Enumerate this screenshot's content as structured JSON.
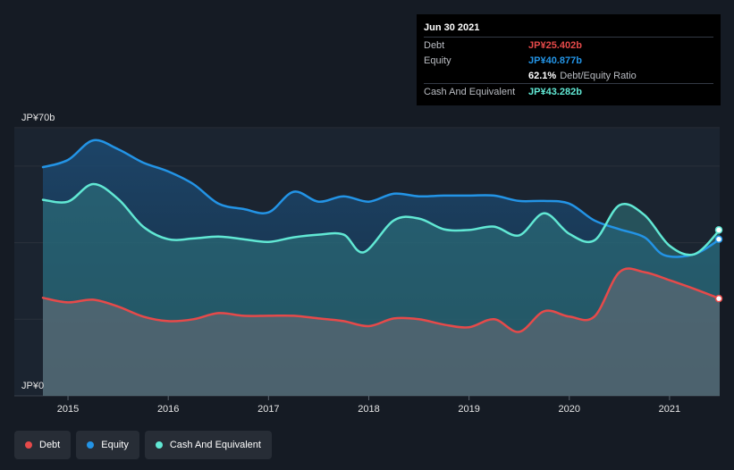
{
  "chart_data": {
    "type": "area",
    "title": "",
    "y_top_label": "JP¥70b",
    "y_bottom_label": "JP¥0",
    "ylim": [
      0,
      70
    ],
    "xlim": [
      2014.5,
      2021.5
    ],
    "x_ticks": [
      2015,
      2016,
      2017,
      2018,
      2019,
      2020,
      2021
    ],
    "x_tick_labels": [
      "2015",
      "2016",
      "2017",
      "2018",
      "2019",
      "2020",
      "2021"
    ],
    "series": [
      {
        "name": "Equity",
        "color": "#2394e6",
        "points": [
          [
            2014.75,
            59.7
          ],
          [
            2015.0,
            61.6
          ],
          [
            2015.25,
            66.7
          ],
          [
            2015.5,
            64.4
          ],
          [
            2015.75,
            60.9
          ],
          [
            2016.0,
            58.6
          ],
          [
            2016.25,
            55.3
          ],
          [
            2016.5,
            50.2
          ],
          [
            2016.75,
            48.8
          ],
          [
            2017.0,
            47.9
          ],
          [
            2017.25,
            53.3
          ],
          [
            2017.5,
            50.7
          ],
          [
            2017.75,
            52.1
          ],
          [
            2018.0,
            50.7
          ],
          [
            2018.25,
            52.8
          ],
          [
            2018.5,
            52.1
          ],
          [
            2018.75,
            52.3
          ],
          [
            2019.0,
            52.3
          ],
          [
            2019.25,
            52.3
          ],
          [
            2019.5,
            50.9
          ],
          [
            2019.75,
            50.9
          ],
          [
            2020.0,
            50.2
          ],
          [
            2020.25,
            45.8
          ],
          [
            2020.5,
            43.5
          ],
          [
            2020.75,
            41.4
          ],
          [
            2020.95,
            36.7
          ],
          [
            2021.25,
            37.0
          ],
          [
            2021.5,
            40.9
          ]
        ]
      },
      {
        "name": "Cash And Equivalent",
        "color": "#61e8d4",
        "points": [
          [
            2014.75,
            51.2
          ],
          [
            2015.0,
            50.7
          ],
          [
            2015.25,
            55.3
          ],
          [
            2015.5,
            51.4
          ],
          [
            2015.75,
            44.2
          ],
          [
            2016.0,
            40.9
          ],
          [
            2016.25,
            41.1
          ],
          [
            2016.5,
            41.6
          ],
          [
            2016.75,
            40.9
          ],
          [
            2017.0,
            40.2
          ],
          [
            2017.25,
            41.4
          ],
          [
            2017.5,
            42.1
          ],
          [
            2017.75,
            42.1
          ],
          [
            2017.95,
            37.5
          ],
          [
            2018.25,
            45.8
          ],
          [
            2018.5,
            46.3
          ],
          [
            2018.75,
            43.5
          ],
          [
            2019.0,
            43.3
          ],
          [
            2019.25,
            44.2
          ],
          [
            2019.5,
            41.9
          ],
          [
            2019.75,
            47.7
          ],
          [
            2020.0,
            42.3
          ],
          [
            2020.25,
            40.6
          ],
          [
            2020.5,
            49.8
          ],
          [
            2020.75,
            47.2
          ],
          [
            2021.0,
            39.2
          ],
          [
            2021.25,
            37.0
          ],
          [
            2021.5,
            43.3
          ]
        ]
      },
      {
        "name": "Debt",
        "color": "#e64a4a",
        "points": [
          [
            2014.75,
            25.6
          ],
          [
            2015.0,
            24.4
          ],
          [
            2015.25,
            25.1
          ],
          [
            2015.5,
            23.3
          ],
          [
            2015.75,
            20.7
          ],
          [
            2016.0,
            19.5
          ],
          [
            2016.25,
            20.0
          ],
          [
            2016.5,
            21.6
          ],
          [
            2016.75,
            20.9
          ],
          [
            2017.0,
            20.9
          ],
          [
            2017.25,
            20.9
          ],
          [
            2017.5,
            20.2
          ],
          [
            2017.75,
            19.5
          ],
          [
            2018.0,
            18.2
          ],
          [
            2018.25,
            20.2
          ],
          [
            2018.5,
            20.0
          ],
          [
            2018.75,
            18.6
          ],
          [
            2019.0,
            17.9
          ],
          [
            2019.25,
            20.0
          ],
          [
            2019.5,
            16.7
          ],
          [
            2019.75,
            22.1
          ],
          [
            2020.0,
            20.7
          ],
          [
            2020.25,
            20.7
          ],
          [
            2020.5,
            32.3
          ],
          [
            2020.75,
            32.3
          ],
          [
            2021.0,
            30.2
          ],
          [
            2021.25,
            27.9
          ],
          [
            2021.5,
            25.4
          ]
        ]
      }
    ],
    "tooltip": {
      "date": "Jun 30 2021",
      "rows": [
        {
          "label": "Debt",
          "value": "JP¥25.402b",
          "color": "#e64a4a"
        },
        {
          "label": "Equity",
          "value": "JP¥40.877b",
          "color": "#2394e6"
        },
        {
          "label": "",
          "value": "62.1%",
          "extra": "Debt/Equity Ratio",
          "color": "#ffffff"
        },
        {
          "label": "Cash And Equivalent",
          "value": "JP¥43.282b",
          "color": "#61e8d4"
        }
      ]
    },
    "legend": [
      {
        "name": "Debt",
        "color": "#e64a4a"
      },
      {
        "name": "Equity",
        "color": "#2394e6"
      },
      {
        "name": "Cash And Equivalent",
        "color": "#61e8d4"
      }
    ]
  }
}
